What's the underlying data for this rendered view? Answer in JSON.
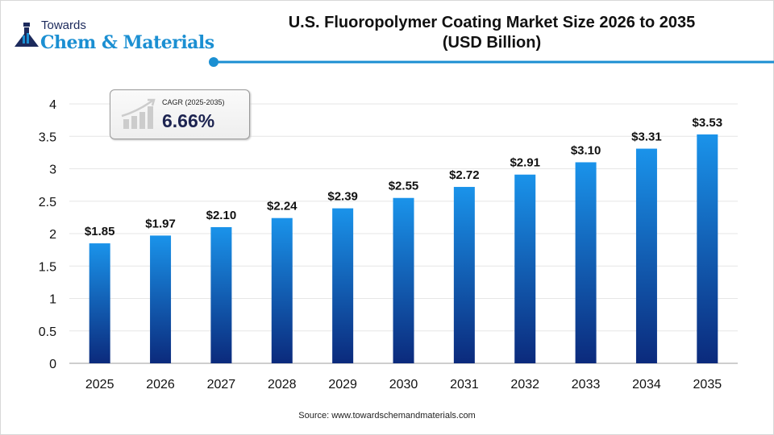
{
  "logo": {
    "line1": "Towards",
    "line2": "Chem & Materials"
  },
  "chart_data": {
    "type": "bar",
    "title": "U.S. Fluoropolymer Coating Market Size 2026 to 2035",
    "subtitle": "(USD Billion)",
    "categories": [
      "2025",
      "2026",
      "2027",
      "2028",
      "2029",
      "2030",
      "2031",
      "2032",
      "2033",
      "2034",
      "2035"
    ],
    "values": [
      1.85,
      1.97,
      2.1,
      2.24,
      2.39,
      2.55,
      2.72,
      2.91,
      3.1,
      3.31,
      3.53
    ],
    "data_labels": [
      "$1.85",
      "$1.97",
      "$2.10",
      "$2.24",
      "$2.39",
      "$2.55",
      "$2.72",
      "$2.91",
      "$3.10",
      "$3.31",
      "$3.53"
    ],
    "ylim": [
      0,
      4
    ],
    "yticks": [
      "0",
      "0.5",
      "1",
      "1.5",
      "2",
      "2.5",
      "3",
      "3.5",
      "4"
    ],
    "xlabel": "",
    "ylabel": "",
    "grid": true,
    "colors": {
      "bar_top": "#1a93ea",
      "bar_bottom": "#0b2a7c",
      "accent": "#1b8fd2"
    }
  },
  "cagr": {
    "label": "CAGR (2025-2035)",
    "value": "6.66%"
  },
  "source": "Source: www.towardschemandmaterials.com"
}
